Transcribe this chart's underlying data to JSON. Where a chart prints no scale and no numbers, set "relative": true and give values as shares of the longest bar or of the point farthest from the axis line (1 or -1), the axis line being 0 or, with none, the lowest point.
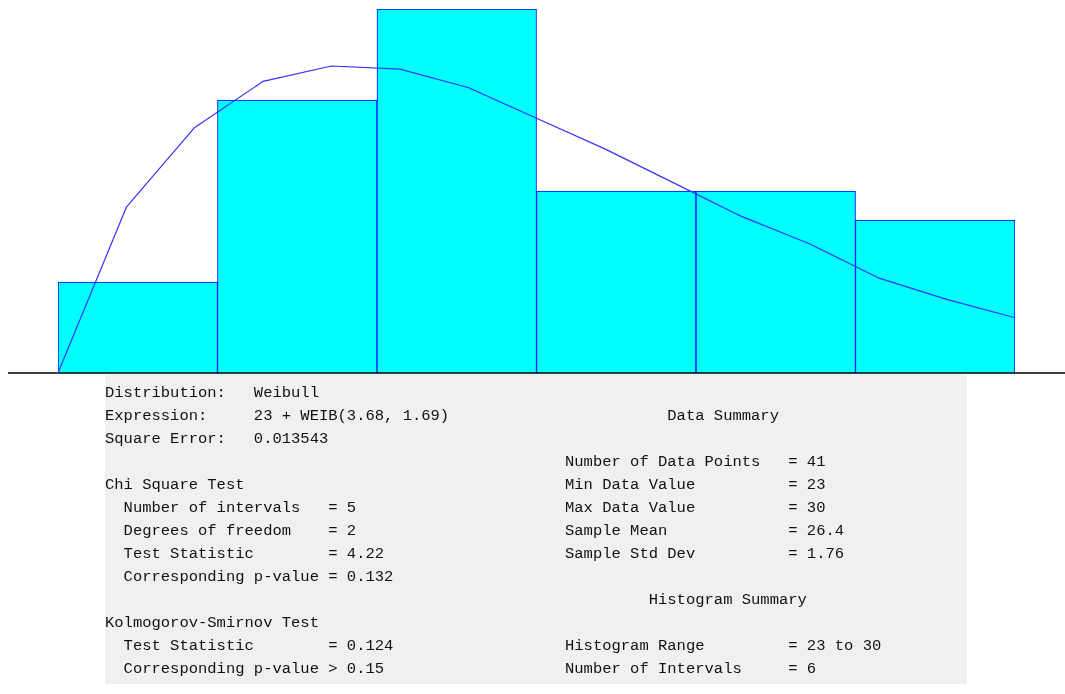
{
  "chart_data": [
    {
      "type": "bar",
      "relative": true,
      "categories": [
        null,
        null,
        null,
        null,
        null,
        null
      ],
      "values": [
        0.25,
        0.75,
        1,
        0.5,
        0.5,
        0.42
      ],
      "color": "#00ffff",
      "annotations": [
        "Distribution:   Weibull\nExpression:     23 + WEIB(3.68, 1.69)\nSquare Error:   0.013543\n\nChi Square Test\n  Number of intervals   = 5\n  Degrees of freedom    = 2\n  Test Statistic        = 4.22\n  Corresponding p-value = 0.132\n\nKolmogorov-Smirnov Test\n  Test Statistic        = 0.124\n  Corresponding p-value > 0.15",
        "\n           Data Summary\n\nNumber of Data Points   = 41\nMin Data Value          = 23\nMax Data Value          = 30\nSample Mean             = 26.4\nSample Std Dev          = 1.76\n\n         Histogram Summary\n\nHistogram Range         = 23 to 30\nNumber of Intervals     = 6"
      ]
    },
    {
      "type": "line",
      "relative": true,
      "categories": [
        null,
        null,
        null,
        null,
        null,
        null,
        null,
        null,
        null,
        null,
        null,
        null,
        null,
        null,
        null
      ],
      "color": "#3333ff",
      "values": [
        0,
        0.54,
        0.8,
        0.95,
        1,
        0.99,
        0.93,
        0.83,
        0.73,
        0.62,
        0.51,
        0.42,
        0.31,
        0.24,
        0.18
      ]
    }
  ]
}
